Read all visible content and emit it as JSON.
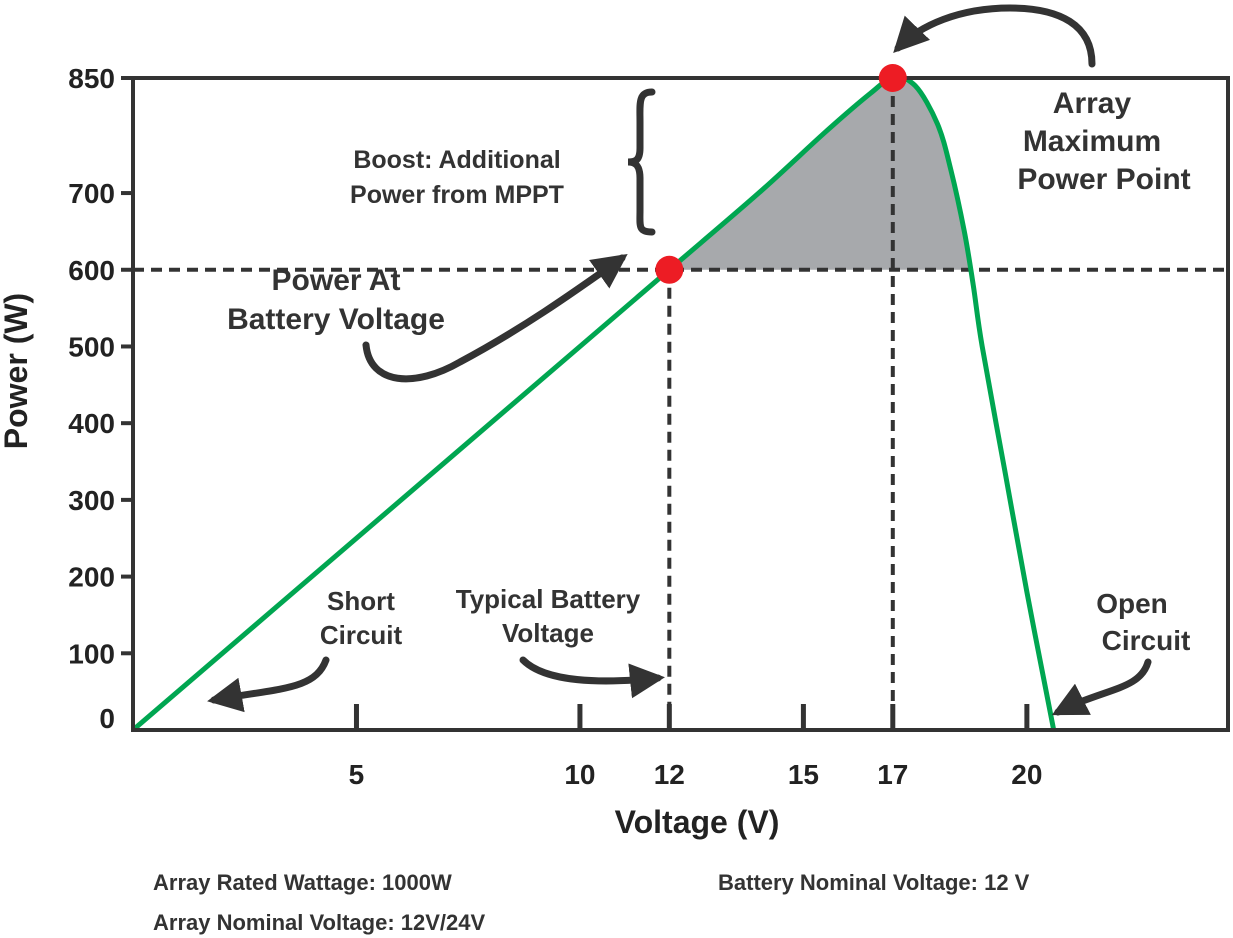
{
  "chart_data": {
    "type": "line",
    "xlabel": "Voltage (V)",
    "ylabel": "Power (W)",
    "x_ticks": [
      5,
      10,
      12,
      15,
      17,
      20
    ],
    "y_ticks": [
      0,
      100,
      200,
      300,
      400,
      500,
      600,
      700,
      850
    ],
    "xlim": [
      0,
      24.5
    ],
    "ylim": [
      0,
      850
    ],
    "grid": false,
    "series": [
      {
        "color": "#00a651",
        "x": [
          0,
          5,
          10,
          12,
          14,
          15.5,
          16.5,
          17,
          17.5,
          18,
          18.3,
          18.6,
          18.8,
          19,
          19.5,
          20,
          20.5,
          20.6
        ],
        "y": [
          0,
          250,
          500,
          600,
          700,
          780,
          830,
          850,
          840,
          790,
          730,
          650,
          580,
          500,
          340,
          180,
          30,
          0
        ]
      }
    ],
    "reference_lines": [
      {
        "orientation": "horizontal",
        "y": 600,
        "style": "dashed"
      },
      {
        "orientation": "vertical",
        "x": 12,
        "style": "dashed"
      },
      {
        "orientation": "vertical",
        "x": 17,
        "style": "dashed"
      }
    ],
    "highlighted_points": [
      {
        "x": 12,
        "y": 600,
        "color": "#ed1c24"
      },
      {
        "x": 17,
        "y": 850,
        "color": "#ed1c24"
      }
    ],
    "shaded_region": {
      "color": "#a7a9ac",
      "y_from": 600
    },
    "annotations": {
      "boost": [
        "Boost: Additional",
        "Power from MPPT"
      ],
      "power_at_battery": [
        "Power At",
        "Battery Voltage"
      ],
      "array_max": [
        "Array",
        "Maximum",
        "Power Point"
      ],
      "short_circuit": [
        "Short",
        "Circuit"
      ],
      "typical_battery": [
        "Typical Battery",
        "Voltage"
      ],
      "open_circuit": [
        "Open",
        "Circuit"
      ]
    }
  },
  "footer": {
    "rated_wattage": "Array Rated Wattage: 1000W",
    "nominal_voltage": "Array Nominal Voltage: 12V/24V",
    "battery_voltage": "Battery Nominal Voltage: 12 V"
  }
}
